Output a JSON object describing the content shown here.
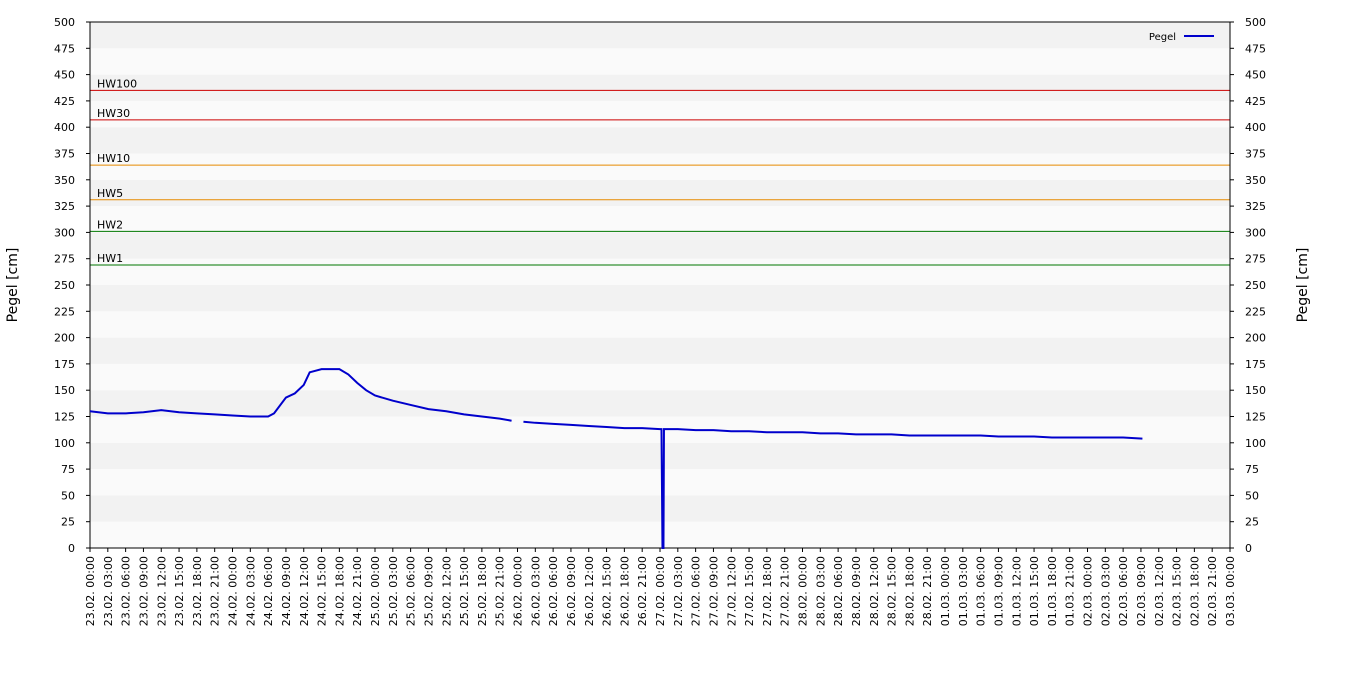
{
  "chart_data": {
    "type": "line",
    "y_label": "Pegel [cm]",
    "y2_label": "Pegel [cm]",
    "legend": "upper right",
    "ylim": [
      0,
      500
    ],
    "yticks": [
      0,
      25,
      50,
      75,
      100,
      125,
      150,
      175,
      200,
      225,
      250,
      275,
      300,
      325,
      350,
      375,
      400,
      425,
      450,
      475,
      500
    ],
    "y2lim": [
      0,
      500
    ],
    "y2ticks": [
      0,
      25,
      50,
      75,
      100,
      125,
      150,
      175,
      200,
      225,
      250,
      275,
      300,
      325,
      350,
      375,
      400,
      425,
      450,
      475,
      500
    ],
    "bands": true,
    "xticks": [
      "23.02. 00:00",
      "23.02. 03:00",
      "23.02. 06:00",
      "23.02. 09:00",
      "23.02. 12:00",
      "23.02. 15:00",
      "23.02. 18:00",
      "23.02. 21:00",
      "24.02. 00:00",
      "24.02. 03:00",
      "24.02. 06:00",
      "24.02. 09:00",
      "24.02. 12:00",
      "24.02. 15:00",
      "24.02. 18:00",
      "24.02. 21:00",
      "25.02. 00:00",
      "25.02. 03:00",
      "25.02. 06:00",
      "25.02. 09:00",
      "25.02. 12:00",
      "25.02. 15:00",
      "25.02. 18:00",
      "25.02. 21:00",
      "26.02. 00:00",
      "26.02. 03:00",
      "26.02. 06:00",
      "26.02. 09:00",
      "26.02. 12:00",
      "26.02. 15:00",
      "26.02. 18:00",
      "26.02. 21:00",
      "27.02. 00:00",
      "27.02. 03:00",
      "27.02. 06:00",
      "27.02. 09:00",
      "27.02. 12:00",
      "27.02. 15:00",
      "27.02. 18:00",
      "27.02. 21:00",
      "28.02. 00:00",
      "28.02. 03:00",
      "28.02. 06:00",
      "28.02. 09:00",
      "28.02. 12:00",
      "28.02. 15:00",
      "28.02. 18:00",
      "28.02. 21:00",
      "01.03. 00:00",
      "01.03. 03:00",
      "01.03. 06:00",
      "01.03. 09:00",
      "01.03. 12:00",
      "01.03. 15:00",
      "01.03. 18:00",
      "01.03. 21:00",
      "02.03. 00:00",
      "02.03. 03:00",
      "02.03. 06:00",
      "02.03. 09:00",
      "02.03. 12:00",
      "02.03. 15:00",
      "02.03. 18:00",
      "02.03. 21:00",
      "03.03. 00:00"
    ],
    "x": [
      "23.02. 00:00",
      "23.02. 03:00",
      "23.02. 06:00",
      "23.02. 09:00",
      "23.02. 12:00",
      "23.02. 15:00",
      "23.02. 18:00",
      "23.02. 21:00",
      "24.02. 00:00",
      "24.02. 03:00",
      "24.02. 06:00",
      "24.02. 07:00",
      "24.02. 09:00",
      "24.02. 10:30",
      "24.02. 12:00",
      "24.02. 13:00",
      "24.02. 15:00",
      "24.02. 18:00",
      "24.02. 19:30",
      "24.02. 21:00",
      "24.02. 22:30",
      "25.02. 00:00",
      "25.02. 03:00",
      "25.02. 06:00",
      "25.02. 09:00",
      "25.02. 12:00",
      "25.02. 15:00",
      "25.02. 18:00",
      "25.02. 21:00",
      "25.02. 23:00",
      "26.02. 00:00",
      "26.02. 01:00",
      "26.02. 03:00",
      "26.02. 06:00",
      "26.02. 09:00",
      "26.02. 12:00",
      "26.02. 15:00",
      "26.02. 18:00",
      "26.02. 21:00",
      "27.02. 00:00",
      "27.02. 00:15",
      "27.02. 00:20",
      "27.02. 00:25",
      "27.02. 00:35",
      "27.02. 00:40",
      "27.02. 03:00",
      "27.02. 06:00",
      "27.02. 09:00",
      "27.02. 12:00",
      "27.02. 15:00",
      "27.02. 18:00",
      "27.02. 21:00",
      "28.02. 00:00",
      "28.02. 03:00",
      "28.02. 06:00",
      "28.02. 09:00",
      "28.02. 12:00",
      "28.02. 15:00",
      "28.02. 18:00",
      "28.02. 21:00",
      "01.03. 00:00",
      "01.03. 03:00",
      "01.03. 06:00",
      "01.03. 09:00",
      "01.03. 12:00",
      "01.03. 15:00",
      "01.03. 18:00",
      "01.03. 21:00",
      "02.03. 00:00",
      "02.03. 03:00",
      "02.03. 06:00",
      "02.03. 09:15"
    ],
    "series": [
      {
        "name": "Pegel",
        "color": "#0000cc",
        "values": [
          130,
          128,
          128,
          129,
          131,
          129,
          128,
          127,
          126,
          125,
          125,
          128,
          143,
          147,
          155,
          167,
          170,
          170,
          165,
          157,
          150,
          145,
          140,
          136,
          132,
          130,
          127,
          125,
          123,
          121,
          null,
          120,
          119,
          118,
          117,
          116,
          115,
          114,
          114,
          113,
          113,
          58,
          0,
          0,
          113,
          113,
          112,
          112,
          111,
          111,
          110,
          110,
          110,
          109,
          109,
          108,
          108,
          108,
          107,
          107,
          107,
          107,
          107,
          106,
          106,
          106,
          105,
          105,
          105,
          105,
          105,
          104
        ]
      }
    ],
    "thresholds": [
      {
        "label": "HW100",
        "value": 435,
        "color": "#cc0000"
      },
      {
        "label": "HW30",
        "value": 407,
        "color": "#cc0000"
      },
      {
        "label": "HW10",
        "value": 364,
        "color": "#e68a00"
      },
      {
        "label": "HW5",
        "value": 331,
        "color": "#e68a00"
      },
      {
        "label": "HW2",
        "value": 301,
        "color": "#007700"
      },
      {
        "label": "HW1",
        "value": 269,
        "color": "#007700"
      }
    ]
  }
}
